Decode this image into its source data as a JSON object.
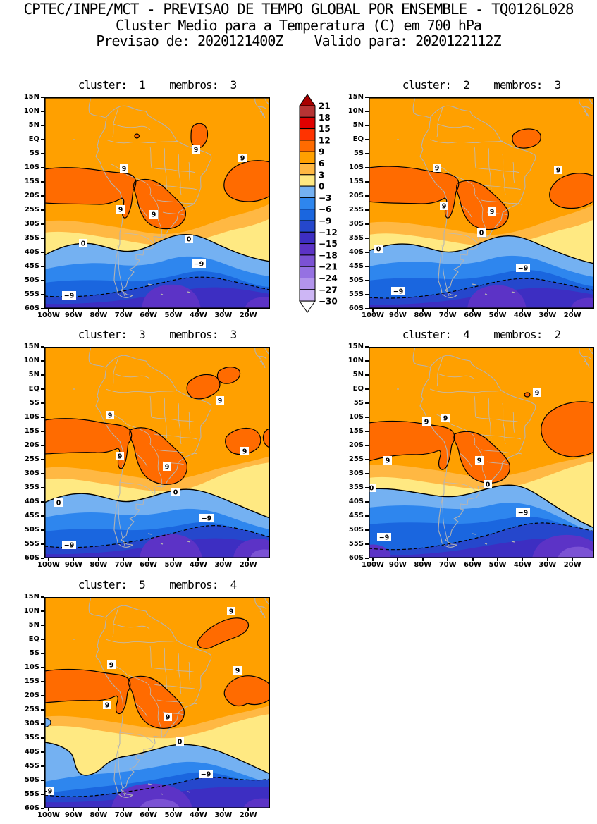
{
  "header": {
    "line1": "CPTEC/INPE/MCT - PREVISAO DE TEMPO GLOBAL POR ENSEMBLE - TQ0126L028",
    "line2": "Cluster Medio para a Temperatura (C) em 700 hPa",
    "line3": "Previsao de: 2020121400Z    Valido para: 2020122112Z"
  },
  "chart_data": {
    "type": "contour_map",
    "institution": "CPTEC/INPE/MCT",
    "product": "PREVISAO DE TEMPO GLOBAL POR ENSEMBLE",
    "model": "TQ0126L028",
    "title": "Cluster Medio para a Temperatura (C) em 700 hPa",
    "variable": "Temperatura",
    "units": "C",
    "level": "700 hPa",
    "forecast_init": "2020121400Z",
    "forecast_valid": "2020122112Z",
    "contour_interval": 3,
    "labeled_contours": [
      "9",
      "0",
      "-9"
    ],
    "region": "South America",
    "lat_range": [
      "15N",
      "60S"
    ],
    "lon_range": [
      "100W",
      "20W"
    ],
    "panels": [
      {
        "cluster": "1",
        "membros": "3",
        "title": "cluster:  1    membros:  3"
      },
      {
        "cluster": "2",
        "membros": "3",
        "title": "cluster:  2    membros:  3"
      },
      {
        "cluster": "3",
        "membros": "3",
        "title": "cluster:  3    membros:  3"
      },
      {
        "cluster": "4",
        "membros": "2",
        "title": "cluster:  4    membros:  2"
      },
      {
        "cluster": "5",
        "membros": "4",
        "title": "cluster:  5    membros:  4"
      }
    ],
    "axes": {
      "lat_labels": [
        "15N",
        "10N",
        "5N",
        "EQ",
        "5S",
        "10S",
        "15S",
        "20S",
        "25S",
        "30S",
        "35S",
        "40S",
        "45S",
        "50S",
        "55S",
        "60S"
      ],
      "lon_labels": [
        "100W",
        "90W",
        "80W",
        "70W",
        "60W",
        "50W",
        "40W",
        "30W",
        "20W"
      ],
      "grid": false
    },
    "colorbar": {
      "orientation": "vertical",
      "labels": [
        "21",
        "18",
        "15",
        "12",
        "9",
        "6",
        "3",
        "0",
        "-3",
        "-6",
        "-9",
        "-12",
        "-15",
        "-18",
        "-21",
        "-24",
        "-27",
        "-30"
      ],
      "cell_colors": [
        "#B73333",
        "#E00000",
        "#FF3300",
        "#FF6B00",
        "#FFA000",
        "#FFB843",
        "#FFE982",
        "#74B1F2",
        "#2E86EE",
        "#1A66DF",
        "#2547CC",
        "#3D2EC2",
        "#5C33C6",
        "#7B52D4",
        "#9571E2",
        "#B294EC",
        "#CDB6F5"
      ],
      "over_color": "#A80000",
      "under_color": "#FFFFFF"
    },
    "map_colors": {
      "coastline": "#B3B3B3",
      "contour_line": "#000000",
      "label_box": "#FFFFFF"
    }
  }
}
